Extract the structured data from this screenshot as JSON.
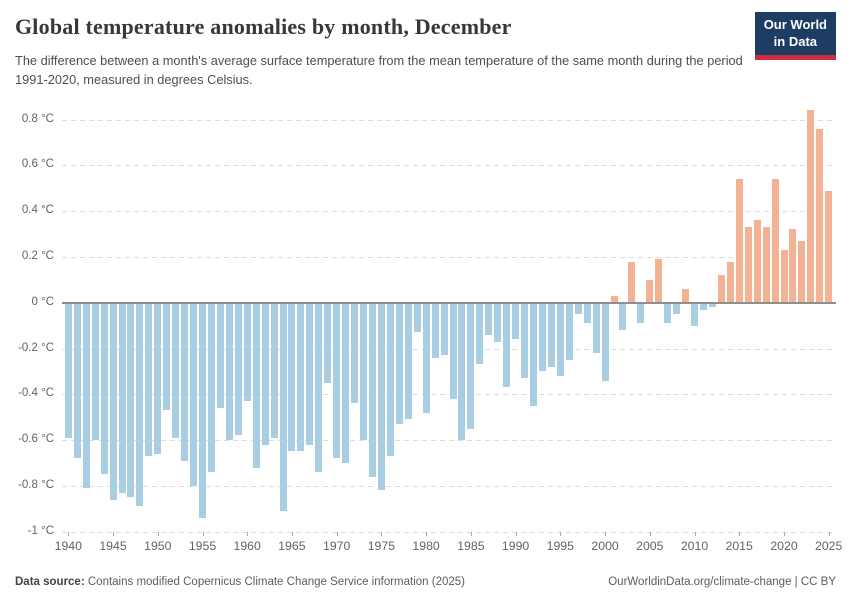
{
  "header": {
    "title": "Global temperature anomalies by month, December",
    "subtitle": "The difference between a month's average surface temperature from the mean temperature of the same month during the period 1991-2020, measured in degrees Celsius.",
    "logo": {
      "line1": "Our World",
      "line2": "in Data"
    }
  },
  "footer": {
    "source_label": "Data source:",
    "source_text": " Contains modified Copernicus Climate Change Service information (2025)",
    "credit_text": "OurWorldinData.org/climate-change | CC BY"
  },
  "chart_data": {
    "type": "bar",
    "title": "Global temperature anomalies by month, December",
    "xlabel": "",
    "ylabel": "",
    "unit": "°C",
    "grid": "horizontal-dashed",
    "legend_position": "none",
    "ylim": [
      -1,
      0.9
    ],
    "colors": {
      "positive": "#f4b294",
      "negative": "#a9cee3",
      "zero_line": "#8d8d8d",
      "grid_line": "#dcdcdc",
      "axis_text": "#636363"
    },
    "yticks": [
      {
        "v": 0.8,
        "label": "0.8 °C"
      },
      {
        "v": 0.6,
        "label": "0.6 °C"
      },
      {
        "v": 0.4,
        "label": "0.4 °C"
      },
      {
        "v": 0.2,
        "label": "0.2 °C"
      },
      {
        "v": 0,
        "label": "0 °C"
      },
      {
        "v": -0.2,
        "label": "-0.2 °C"
      },
      {
        "v": -0.4,
        "label": "-0.4 °C"
      },
      {
        "v": -0.6,
        "label": "-0.6 °C"
      },
      {
        "v": -0.8,
        "label": "-0.8 °C"
      },
      {
        "v": -1,
        "label": "-1 °C"
      }
    ],
    "xticks": [
      1940,
      1945,
      1950,
      1955,
      1960,
      1965,
      1970,
      1975,
      1980,
      1985,
      1990,
      1995,
      2000,
      2005,
      2010,
      2015,
      2020,
      2025
    ],
    "x": [
      1940,
      1941,
      1942,
      1943,
      1944,
      1945,
      1946,
      1947,
      1948,
      1949,
      1950,
      1951,
      1952,
      1953,
      1954,
      1955,
      1956,
      1957,
      1958,
      1959,
      1960,
      1961,
      1962,
      1963,
      1964,
      1965,
      1966,
      1967,
      1968,
      1969,
      1970,
      1971,
      1972,
      1973,
      1974,
      1975,
      1976,
      1977,
      1978,
      1979,
      1980,
      1981,
      1982,
      1983,
      1984,
      1985,
      1986,
      1987,
      1988,
      1989,
      1990,
      1991,
      1992,
      1993,
      1994,
      1995,
      1996,
      1997,
      1998,
      1999,
      2000,
      2001,
      2002,
      2003,
      2004,
      2005,
      2006,
      2007,
      2008,
      2009,
      2010,
      2011,
      2012,
      2013,
      2014,
      2015,
      2016,
      2017,
      2018,
      2019,
      2020,
      2021,
      2022,
      2023,
      2024,
      2025
    ],
    "values": [
      -0.59,
      -0.68,
      -0.81,
      -0.6,
      -0.75,
      -0.86,
      -0.83,
      -0.85,
      -0.89,
      -0.67,
      -0.66,
      -0.47,
      -0.59,
      -0.69,
      -0.8,
      -0.94,
      -0.74,
      -0.46,
      -0.6,
      -0.58,
      -0.43,
      -0.72,
      -0.62,
      -0.59,
      -0.91,
      -0.65,
      -0.65,
      -0.62,
      -0.74,
      -0.35,
      -0.68,
      -0.7,
      -0.44,
      -0.6,
      -0.76,
      -0.82,
      -0.67,
      -0.53,
      -0.51,
      -0.13,
      -0.48,
      -0.24,
      -0.23,
      -0.42,
      -0.6,
      -0.55,
      -0.27,
      -0.14,
      -0.17,
      -0.37,
      -0.16,
      -0.33,
      -0.45,
      -0.3,
      -0.28,
      -0.32,
      -0.25,
      -0.05,
      -0.09,
      -0.22,
      -0.34,
      0.03,
      -0.12,
      0.18,
      -0.09,
      0.1,
      0.19,
      -0.09,
      -0.05,
      0.06,
      -0.1,
      -0.03,
      -0.02,
      0.12,
      0.18,
      0.54,
      0.33,
      0.36,
      0.33,
      0.54,
      0.23,
      0.32,
      0.27,
      0.84,
      0.76,
      0.49
    ]
  }
}
